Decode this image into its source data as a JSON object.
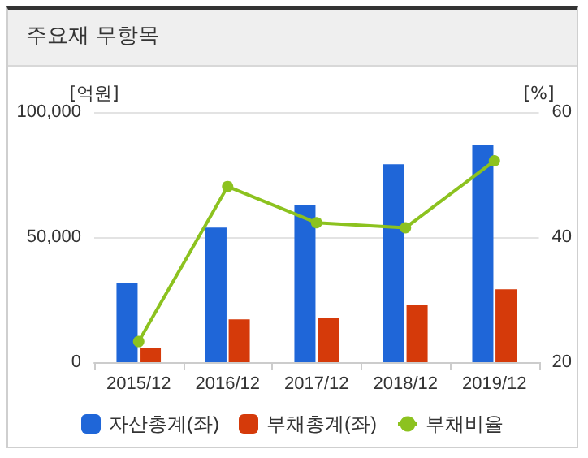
{
  "chart_data": {
    "type": "bar",
    "title": "주요재 무항목",
    "ylabel": "[억원]",
    "y2label": "[%]",
    "categories": [
      "2015/12",
      "2016/12",
      "2017/12",
      "2018/12",
      "2019/12"
    ],
    "series": [
      {
        "name": "자산총계(좌)",
        "color": "#1f66d8",
        "values": [
          31600,
          53800,
          62700,
          79100,
          86700
        ]
      },
      {
        "name": "부채총계(좌)",
        "color": "#d53a0a",
        "values": [
          5700,
          17100,
          17700,
          22800,
          29100
        ]
      },
      {
        "name": "부채비율",
        "type": "line",
        "axis": "y2",
        "color": "#8cc21f",
        "marker": "circle",
        "values": [
          23.3,
          48.1,
          42.3,
          41.5,
          52.2
        ]
      }
    ],
    "ylim": [
      0,
      100000
    ],
    "yticks": [
      0,
      {
        "value": 50000,
        "label": "50,000"
      },
      {
        "value": 100000,
        "label": "100,000"
      }
    ],
    "y2lim": [
      20,
      60
    ],
    "y2ticks": [
      20,
      40,
      60
    ],
    "grid": "y",
    "legend": "bottom"
  }
}
